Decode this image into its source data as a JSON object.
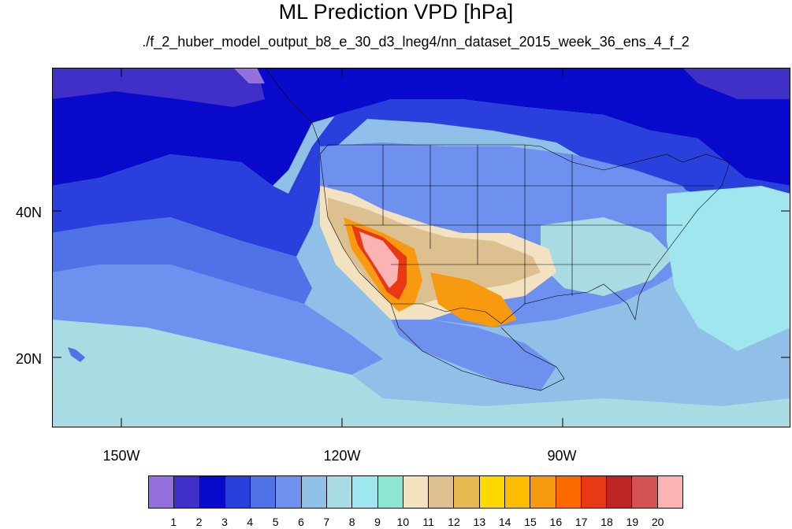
{
  "title": "ML Prediction VPD [hPa]",
  "subtitle": "./f_2_huber_model_output_b8_e_30_d3_lneg4/nn_dataset_2015_week_36_ens_4_f_2",
  "axes": {
    "lat_labels": [
      "40N",
      "20N"
    ],
    "lon_labels": [
      "150W",
      "120W",
      "90W"
    ]
  },
  "colorbar": {
    "labels": [
      "1",
      "2",
      "3",
      "4",
      "5",
      "6",
      "7",
      "8",
      "9",
      "10",
      "11",
      "12",
      "13",
      "14",
      "15",
      "16",
      "17",
      "18",
      "19",
      "20"
    ],
    "colors": [
      "#9370DB",
      "#4030C8",
      "#0A0ACD",
      "#2A40DC",
      "#4F73E6",
      "#6E90EE",
      "#90C0E8",
      "#A8DCE2",
      "#A0E6EE",
      "#8CE6D2",
      "#F2E2C0",
      "#DCC090",
      "#E8B850",
      "#FCDA00",
      "#FCBC00",
      "#F89A10",
      "#FC6A00",
      "#E83814",
      "#BE2626",
      "#D45252",
      "#FAB4B4"
    ]
  }
}
